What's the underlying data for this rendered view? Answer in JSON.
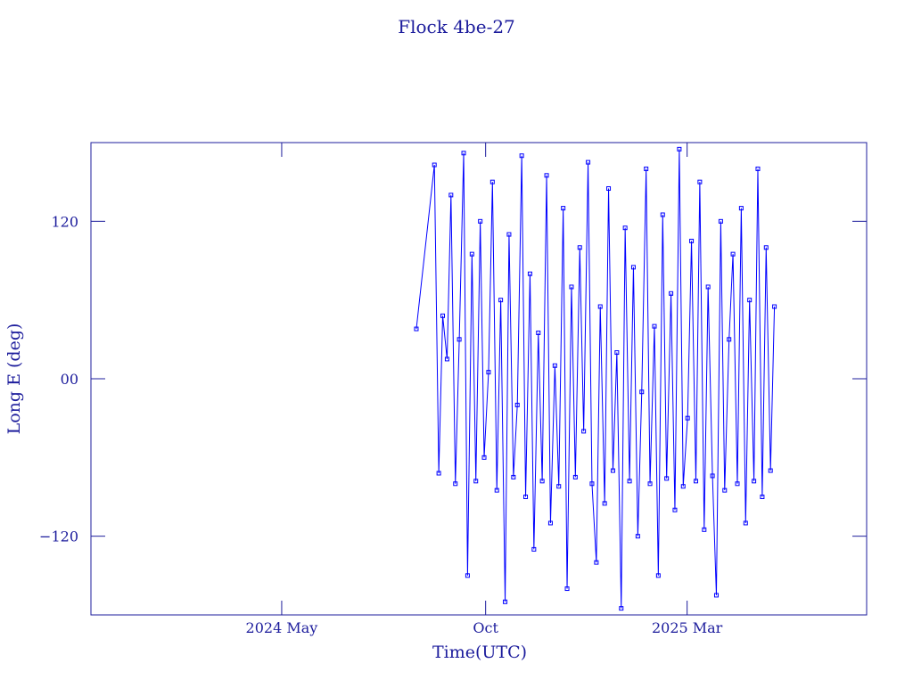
{
  "chart_data": {
    "type": "line",
    "title": "Flock 4be-27",
    "x_label": "Time(UTC)",
    "y_label": "Long E (deg)",
    "x": [
      2024.607,
      2024.644,
      2024.653,
      2024.661,
      2024.67,
      2024.678,
      2024.687,
      2024.695,
      2024.704,
      2024.712,
      2024.721,
      2024.729,
      2024.738,
      2024.746,
      2024.755,
      2024.763,
      2024.772,
      2024.78,
      2024.789,
      2024.797,
      2024.806,
      2024.814,
      2024.823,
      2024.831,
      2024.84,
      2024.848,
      2024.857,
      2024.865,
      2024.874,
      2024.882,
      2024.891,
      2024.899,
      2024.908,
      2024.916,
      2024.925,
      2024.933,
      2024.942,
      2024.95,
      2024.959,
      2024.967,
      2024.976,
      2024.984,
      2024.993,
      2025.001,
      2025.01,
      2025.018,
      2025.027,
      2025.035,
      2025.044,
      2025.052,
      2025.061,
      2025.069,
      2025.078,
      2025.086,
      2025.095,
      2025.103,
      2025.112,
      2025.12,
      2025.129,
      2025.137,
      2025.146,
      2025.154,
      2025.163,
      2025.171,
      2025.18,
      2025.188,
      2025.197,
      2025.205,
      2025.214,
      2025.222,
      2025.231,
      2025.239,
      2025.248,
      2025.256,
      2025.265,
      2025.273,
      2025.282,
      2025.29,
      2025.299,
      2025.307,
      2025.316,
      2025.324,
      2025.333,
      2025.341
    ],
    "series": [
      {
        "name": "Long E",
        "color": "#0000ff",
        "values": [
          38,
          163,
          -72,
          48,
          15,
          140,
          -80,
          30,
          172,
          -150,
          95,
          -78,
          120,
          -60,
          5,
          150,
          -85,
          60,
          -170,
          110,
          -75,
          -20,
          170,
          -90,
          80,
          -130,
          35,
          -78,
          155,
          -110,
          10,
          -82,
          130,
          -160,
          70,
          -75,
          100,
          -40,
          165,
          -80,
          -140,
          55,
          -95,
          145,
          -70,
          20,
          -175,
          115,
          -78,
          85,
          -120,
          -10,
          160,
          -80,
          40,
          -150,
          125,
          -76,
          65,
          -100,
          175,
          -82,
          -30,
          105,
          -78,
          150,
          -115,
          70,
          -74,
          -165,
          120,
          -85,
          30,
          95,
          -80,
          130,
          -110,
          60,
          -78,
          160,
          -90,
          100,
          -70,
          55
        ]
      }
    ],
    "xlim": [
      2023.94,
      2025.53
    ],
    "xticks": [
      {
        "value": 2024.331,
        "label": "2024 May"
      },
      {
        "value": 2024.749,
        "label": "Oct"
      },
      {
        "value": 2025.162,
        "label": "2025 Mar"
      }
    ],
    "ylim": [
      -180,
      180
    ],
    "yticks": [
      {
        "value": -120,
        "label": "−120"
      },
      {
        "value": 0,
        "label": "00"
      },
      120
    ],
    "axis_color": "#1c1c9c"
  }
}
